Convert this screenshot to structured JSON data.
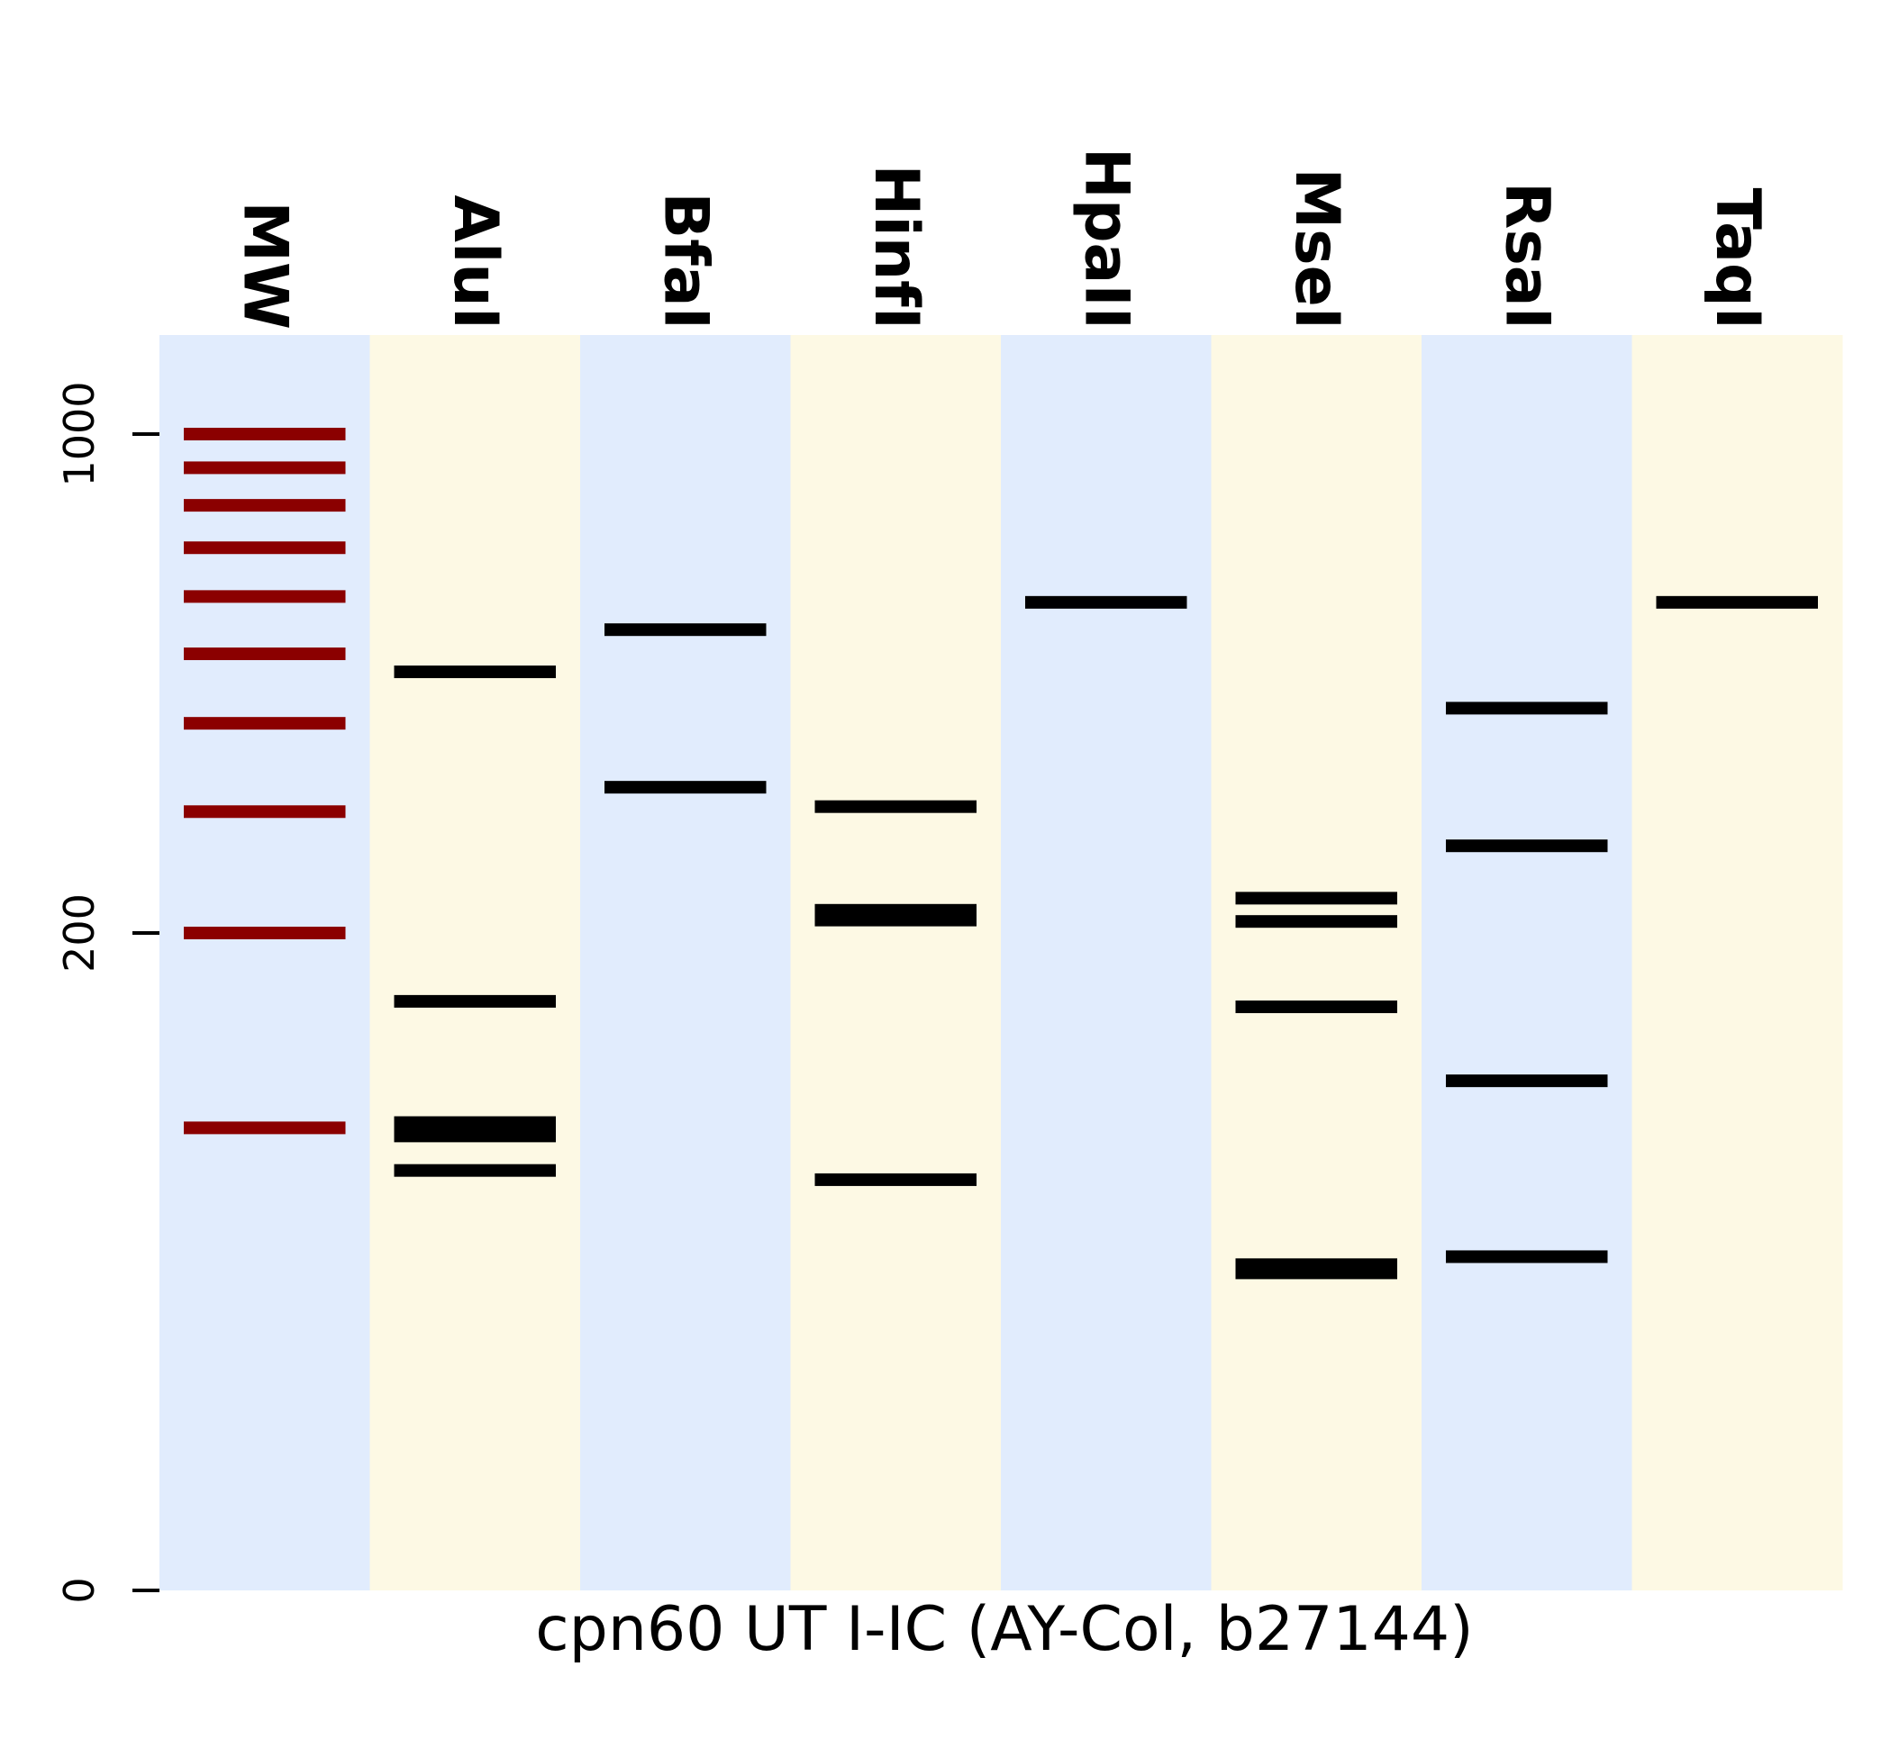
{
  "chart_data": {
    "type": "gel",
    "title": "",
    "xlabel": "cpn60 UT I-IC (AY-Col, b27144)",
    "ylabel": "",
    "yscale": "log",
    "yticks": [
      "0",
      "200",
      "1000"
    ],
    "lanes": [
      "MW",
      "AluI",
      "BfaI",
      "HinfI",
      "HpaII",
      "MseI",
      "RsaI",
      "TaqI"
    ],
    "lane_colors": [
      "#e1ecfd",
      "#fdf9e4",
      "#e1ecfd",
      "#fdf9e4",
      "#e1ecfd",
      "#fdf9e4",
      "#e1ecfd",
      "#fdf9e4"
    ],
    "band_color": "#000000",
    "marker_color": "#8b0000",
    "bands": [
      [
        1000,
        900,
        800,
        700,
        600,
        500,
        400,
        300,
        200,
        100
      ],
      [
        472,
        158,
        102,
        99,
        97,
        85
      ],
      [
        540,
        325
      ],
      [
        216,
        212,
        209,
        305,
        82
      ],
      [
        589
      ],
      [
        225,
        208,
        155,
        58,
        56
      ],
      [
        420,
        268,
        119,
        60
      ],
      [
        589
      ]
    ]
  }
}
